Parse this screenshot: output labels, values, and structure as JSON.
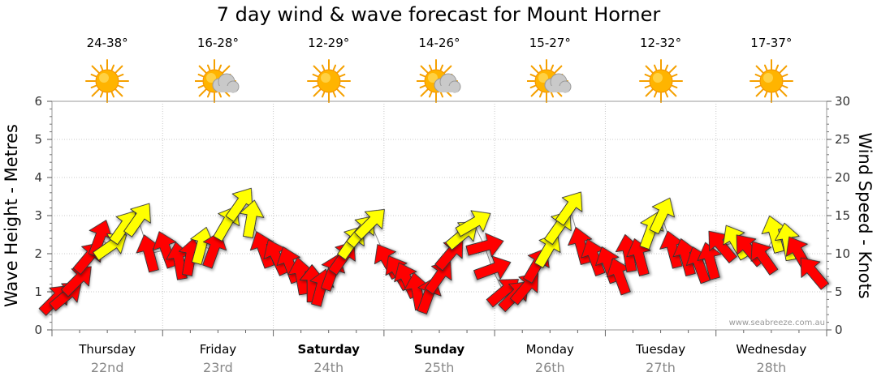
{
  "chart_data": {
    "type": "wind_wave_forecast",
    "title": "7 day wind & wave forecast for Mount Horner",
    "ylabel_left": "Wave Height - Metres",
    "ylabel_right": "Wind Speed - Knots",
    "ylim_left": [
      0,
      6
    ],
    "ylim_right": [
      0,
      30
    ],
    "yticks_left": [
      "0",
      "1",
      "2",
      "3",
      "4",
      "5",
      "6"
    ],
    "yticks_right": [
      "0",
      "5",
      "10",
      "15",
      "20",
      "25",
      "30"
    ],
    "watermark": "www.seabreeze.com.au",
    "days": [
      {
        "name": "Thursday",
        "date": "22nd",
        "bold": false,
        "temp": "24-38°",
        "icon": "sun-icon"
      },
      {
        "name": "Friday",
        "date": "23rd",
        "bold": false,
        "temp": "16-28°",
        "icon": "sun-cloud-icon"
      },
      {
        "name": "Saturday",
        "date": "24th",
        "bold": true,
        "temp": "12-29°",
        "icon": "sun-icon"
      },
      {
        "name": "Sunday",
        "date": "25th",
        "bold": true,
        "temp": "14-26°",
        "icon": "sun-cloud-icon"
      },
      {
        "name": "Monday",
        "date": "26th",
        "bold": false,
        "temp": "15-27°",
        "icon": "sun-cloud-icon"
      },
      {
        "name": "Tuesday",
        "date": "27th",
        "bold": false,
        "temp": "12-32°",
        "icon": "sun-icon"
      },
      {
        "name": "Wednesday",
        "date": "28th",
        "bold": false,
        "temp": "17-37°",
        "icon": "sun-icon"
      }
    ],
    "wind_series": [
      {
        "day": 0.0,
        "knots": 4.0,
        "dir": 225,
        "color": "#ff0000"
      },
      {
        "day": 0.1,
        "knots": 4.5,
        "dir": 230,
        "color": "#ff0000"
      },
      {
        "day": 0.2,
        "knots": 6.5,
        "dir": 225,
        "color": "#ff0000"
      },
      {
        "day": 0.3,
        "knots": 9.5,
        "dir": 220,
        "color": "#ff0000"
      },
      {
        "day": 0.4,
        "knots": 12.0,
        "dir": 200,
        "color": "#ff0000"
      },
      {
        "day": 0.5,
        "knots": 11.0,
        "dir": 235,
        "color": "#ffff00"
      },
      {
        "day": 0.62,
        "knots": 13.5,
        "dir": 215,
        "color": "#ffff00"
      },
      {
        "day": 0.75,
        "knots": 14.5,
        "dir": 215,
        "color": "#ffff00"
      },
      {
        "day": 0.85,
        "knots": 10.0,
        "dir": 165,
        "color": "#ff0000"
      },
      {
        "day": 1.0,
        "knots": 10.5,
        "dir": 160,
        "color": "#ff0000"
      },
      {
        "day": 1.12,
        "knots": 9.0,
        "dir": 170,
        "color": "#ff0000"
      },
      {
        "day": 1.22,
        "knots": 9.5,
        "dir": 190,
        "color": "#ff0000"
      },
      {
        "day": 1.32,
        "knots": 11.0,
        "dir": 195,
        "color": "#ffff00"
      },
      {
        "day": 1.43,
        "knots": 10.5,
        "dir": 200,
        "color": "#ff0000"
      },
      {
        "day": 1.55,
        "knots": 14.0,
        "dir": 210,
        "color": "#ffff00"
      },
      {
        "day": 1.67,
        "knots": 16.5,
        "dir": 215,
        "color": "#ffff00"
      },
      {
        "day": 1.77,
        "knots": 14.5,
        "dir": 190,
        "color": "#ffff00"
      },
      {
        "day": 1.88,
        "knots": 10.5,
        "dir": 160,
        "color": "#ff0000"
      },
      {
        "day": 2.0,
        "knots": 9.5,
        "dir": 155,
        "color": "#ff0000"
      },
      {
        "day": 2.12,
        "knots": 8.5,
        "dir": 160,
        "color": "#ff0000"
      },
      {
        "day": 2.22,
        "knots": 7.0,
        "dir": 170,
        "color": "#ff0000"
      },
      {
        "day": 2.32,
        "knots": 6.0,
        "dir": 180,
        "color": "#ff0000"
      },
      {
        "day": 2.4,
        "knots": 5.5,
        "dir": 195,
        "color": "#ff0000"
      },
      {
        "day": 2.5,
        "knots": 7.5,
        "dir": 200,
        "color": "#ff0000"
      },
      {
        "day": 2.6,
        "knots": 9.5,
        "dir": 215,
        "color": "#ff0000"
      },
      {
        "day": 2.68,
        "knots": 11.5,
        "dir": 215,
        "color": "#ffff00"
      },
      {
        "day": 2.77,
        "knots": 13.0,
        "dir": 220,
        "color": "#ffff00"
      },
      {
        "day": 2.85,
        "knots": 14.0,
        "dir": 225,
        "color": "#ffff00"
      },
      {
        "day": 3.0,
        "knots": 9.0,
        "dir": 150,
        "color": "#ff0000"
      },
      {
        "day": 3.1,
        "knots": 7.5,
        "dir": 150,
        "color": "#ff0000"
      },
      {
        "day": 3.18,
        "knots": 6.5,
        "dir": 155,
        "color": "#ff0000"
      },
      {
        "day": 3.27,
        "knots": 5.0,
        "dir": 170,
        "color": "#ff0000"
      },
      {
        "day": 3.37,
        "knots": 4.5,
        "dir": 200,
        "color": "#ff0000"
      },
      {
        "day": 3.47,
        "knots": 7.0,
        "dir": 215,
        "color": "#ff0000"
      },
      {
        "day": 3.57,
        "knots": 10.0,
        "dir": 220,
        "color": "#ff0000"
      },
      {
        "day": 3.68,
        "knots": 12.5,
        "dir": 230,
        "color": "#ffff00"
      },
      {
        "day": 3.78,
        "knots": 14.0,
        "dir": 240,
        "color": "#ffff00"
      },
      {
        "day": 3.88,
        "knots": 11.0,
        "dir": 255,
        "color": "#ff0000"
      },
      {
        "day": 3.95,
        "knots": 8.0,
        "dir": 250,
        "color": "#ff0000"
      },
      {
        "day": 4.05,
        "knots": 5.0,
        "dir": 230,
        "color": "#ff0000"
      },
      {
        "day": 4.15,
        "knots": 4.5,
        "dir": 225,
        "color": "#ff0000"
      },
      {
        "day": 4.25,
        "knots": 5.5,
        "dir": 220,
        "color": "#ff0000"
      },
      {
        "day": 4.35,
        "knots": 8.5,
        "dir": 210,
        "color": "#ff0000"
      },
      {
        "day": 4.45,
        "knots": 10.5,
        "dir": 210,
        "color": "#ffff00"
      },
      {
        "day": 4.55,
        "knots": 13.5,
        "dir": 215,
        "color": "#ffff00"
      },
      {
        "day": 4.65,
        "knots": 16.0,
        "dir": 215,
        "color": "#ffff00"
      },
      {
        "day": 4.75,
        "knots": 11.0,
        "dir": 165,
        "color": "#ff0000"
      },
      {
        "day": 4.87,
        "knots": 9.5,
        "dir": 160,
        "color": "#ff0000"
      },
      {
        "day": 5.0,
        "knots": 8.5,
        "dir": 160,
        "color": "#ff0000"
      },
      {
        "day": 5.1,
        "knots": 7.0,
        "dir": 160,
        "color": "#ff0000"
      },
      {
        "day": 5.18,
        "knots": 10.0,
        "dir": 170,
        "color": "#ff0000"
      },
      {
        "day": 5.28,
        "knots": 9.5,
        "dir": 165,
        "color": "#ff0000"
      },
      {
        "day": 5.38,
        "knots": 13.0,
        "dir": 200,
        "color": "#ffff00"
      },
      {
        "day": 5.48,
        "knots": 15.0,
        "dir": 205,
        "color": "#ffff00"
      },
      {
        "day": 5.58,
        "knots": 10.5,
        "dir": 165,
        "color": "#ff0000"
      },
      {
        "day": 5.7,
        "knots": 9.5,
        "dir": 165,
        "color": "#ff0000"
      },
      {
        "day": 5.82,
        "knots": 8.5,
        "dir": 160,
        "color": "#ff0000"
      },
      {
        "day": 5.92,
        "knots": 9.0,
        "dir": 165,
        "color": "#ff0000"
      },
      {
        "day": 6.02,
        "knots": 11.0,
        "dir": 140,
        "color": "#ff0000"
      },
      {
        "day": 6.15,
        "knots": 11.5,
        "dir": 150,
        "color": "#ffff00"
      },
      {
        "day": 6.27,
        "knots": 10.5,
        "dir": 140,
        "color": "#ff0000"
      },
      {
        "day": 6.4,
        "knots": 9.5,
        "dir": 145,
        "color": "#ff0000"
      },
      {
        "day": 6.5,
        "knots": 12.5,
        "dir": 165,
        "color": "#ffff00"
      },
      {
        "day": 6.62,
        "knots": 11.5,
        "dir": 170,
        "color": "#ffff00"
      },
      {
        "day": 6.72,
        "knots": 10.0,
        "dir": 150,
        "color": "#ff0000"
      },
      {
        "day": 6.85,
        "knots": 7.5,
        "dir": 140,
        "color": "#ff0000"
      }
    ]
  }
}
